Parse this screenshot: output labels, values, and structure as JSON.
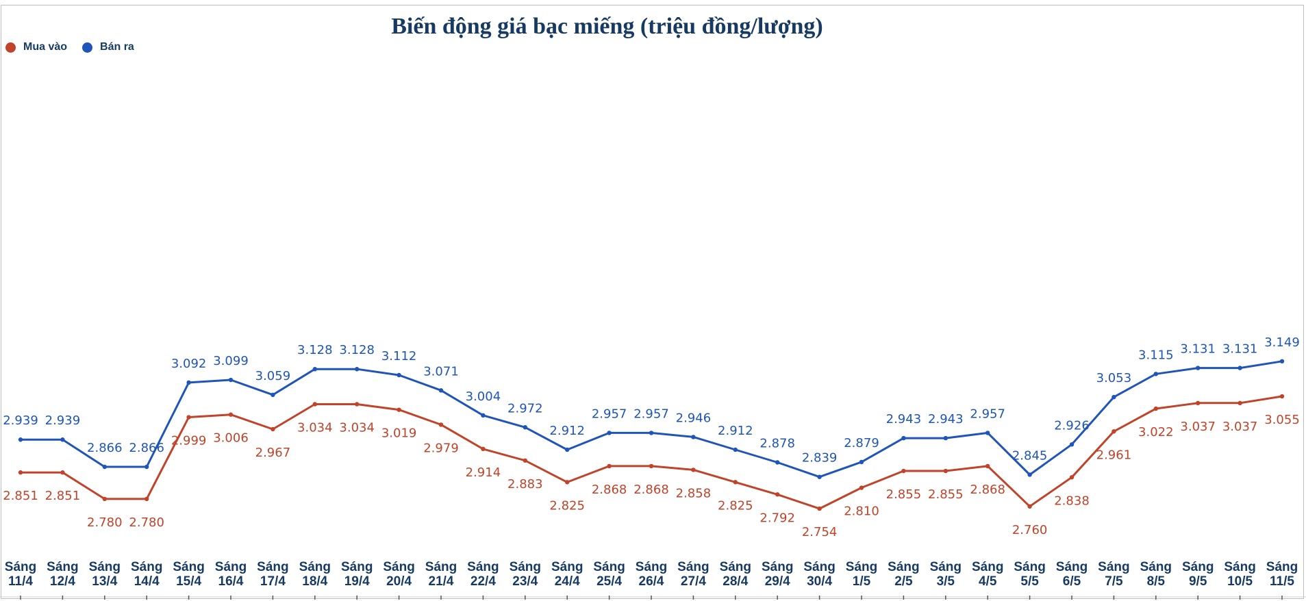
{
  "chart_data": {
    "type": "line",
    "title": "Biến động giá bạc miếng (triệu đồng/lượng)",
    "legend_position": "top-left",
    "grid": false,
    "ylim": [
      2.0,
      4.0
    ],
    "categories": [
      [
        "Sáng",
        "11/4"
      ],
      [
        "Sáng",
        "12/4"
      ],
      [
        "Sáng",
        "13/4"
      ],
      [
        "Sáng",
        "14/4"
      ],
      [
        "Sáng",
        "15/4"
      ],
      [
        "Sáng",
        "16/4"
      ],
      [
        "Sáng",
        "17/4"
      ],
      [
        "Sáng",
        "18/4"
      ],
      [
        "Sáng",
        "19/4"
      ],
      [
        "Sáng",
        "20/4"
      ],
      [
        "Sáng",
        "21/4"
      ],
      [
        "Sáng",
        "22/4"
      ],
      [
        "Sáng",
        "23/4"
      ],
      [
        "Sáng",
        "24/4"
      ],
      [
        "Sáng",
        "25/4"
      ],
      [
        "Sáng",
        "26/4"
      ],
      [
        "Sáng",
        "27/4"
      ],
      [
        "Sáng",
        "28/4"
      ],
      [
        "Sáng",
        "29/4"
      ],
      [
        "Sáng",
        "30/4"
      ],
      [
        "Sáng",
        "1/5"
      ],
      [
        "Sáng",
        "2/5"
      ],
      [
        "Sáng",
        "3/5"
      ],
      [
        "Sáng",
        "4/5"
      ],
      [
        "Sáng",
        "5/5"
      ],
      [
        "Sáng",
        "6/5"
      ],
      [
        "Sáng",
        "7/5"
      ],
      [
        "Sáng",
        "8/5"
      ],
      [
        "Sáng",
        "9/5"
      ],
      [
        "Sáng",
        "10/5"
      ],
      [
        "Sáng",
        "11/5"
      ]
    ],
    "series": [
      {
        "name": "Mua vào",
        "color": "#c0432a",
        "values": [
          2.851,
          2.851,
          2.78,
          2.78,
          2.999,
          3.006,
          2.967,
          3.034,
          3.034,
          3.019,
          2.979,
          2.914,
          2.883,
          2.825,
          2.868,
          2.868,
          2.858,
          2.825,
          2.792,
          2.754,
          2.81,
          2.855,
          2.855,
          2.868,
          2.76,
          2.838,
          2.961,
          3.022,
          3.037,
          3.037,
          3.055
        ],
        "labels": [
          "2.851",
          "2.851",
          "2.780",
          "2.780",
          "2.999",
          "3.006",
          "2.967",
          "3.034",
          "3.034",
          "3.019",
          "2.979",
          "2.914",
          "2.883",
          "2.825",
          "2.868",
          "2.868",
          "2.858",
          "2.825",
          "2.792",
          "2.754",
          "2.810",
          "2.855",
          "2.855",
          "2.868",
          "2.760",
          "2.838",
          "2.961",
          "3.022",
          "3.037",
          "3.037",
          "3.055"
        ]
      },
      {
        "name": "Bán ra",
        "color": "#1f55b8",
        "values": [
          2.939,
          2.939,
          2.866,
          2.866,
          3.092,
          3.099,
          3.059,
          3.128,
          3.128,
          3.112,
          3.071,
          3.004,
          2.972,
          2.912,
          2.957,
          2.957,
          2.946,
          2.912,
          2.878,
          2.839,
          2.879,
          2.943,
          2.943,
          2.957,
          2.845,
          2.926,
          3.053,
          3.115,
          3.131,
          3.131,
          3.149
        ],
        "labels": [
          "2.939",
          "2.939",
          "2.866",
          "2.866",
          "3.092",
          "3.099",
          "3.059",
          "3.128",
          "3.128",
          "3.112",
          "3.071",
          "3.004",
          "2.972",
          "2.912",
          "2.957",
          "2.957",
          "2.946",
          "2.912",
          "2.878",
          "2.839",
          "2.879",
          "2.943",
          "2.943",
          "2.957",
          "2.845",
          "2.926",
          "3.053",
          "3.115",
          "3.131",
          "3.131",
          "3.149"
        ]
      }
    ]
  }
}
